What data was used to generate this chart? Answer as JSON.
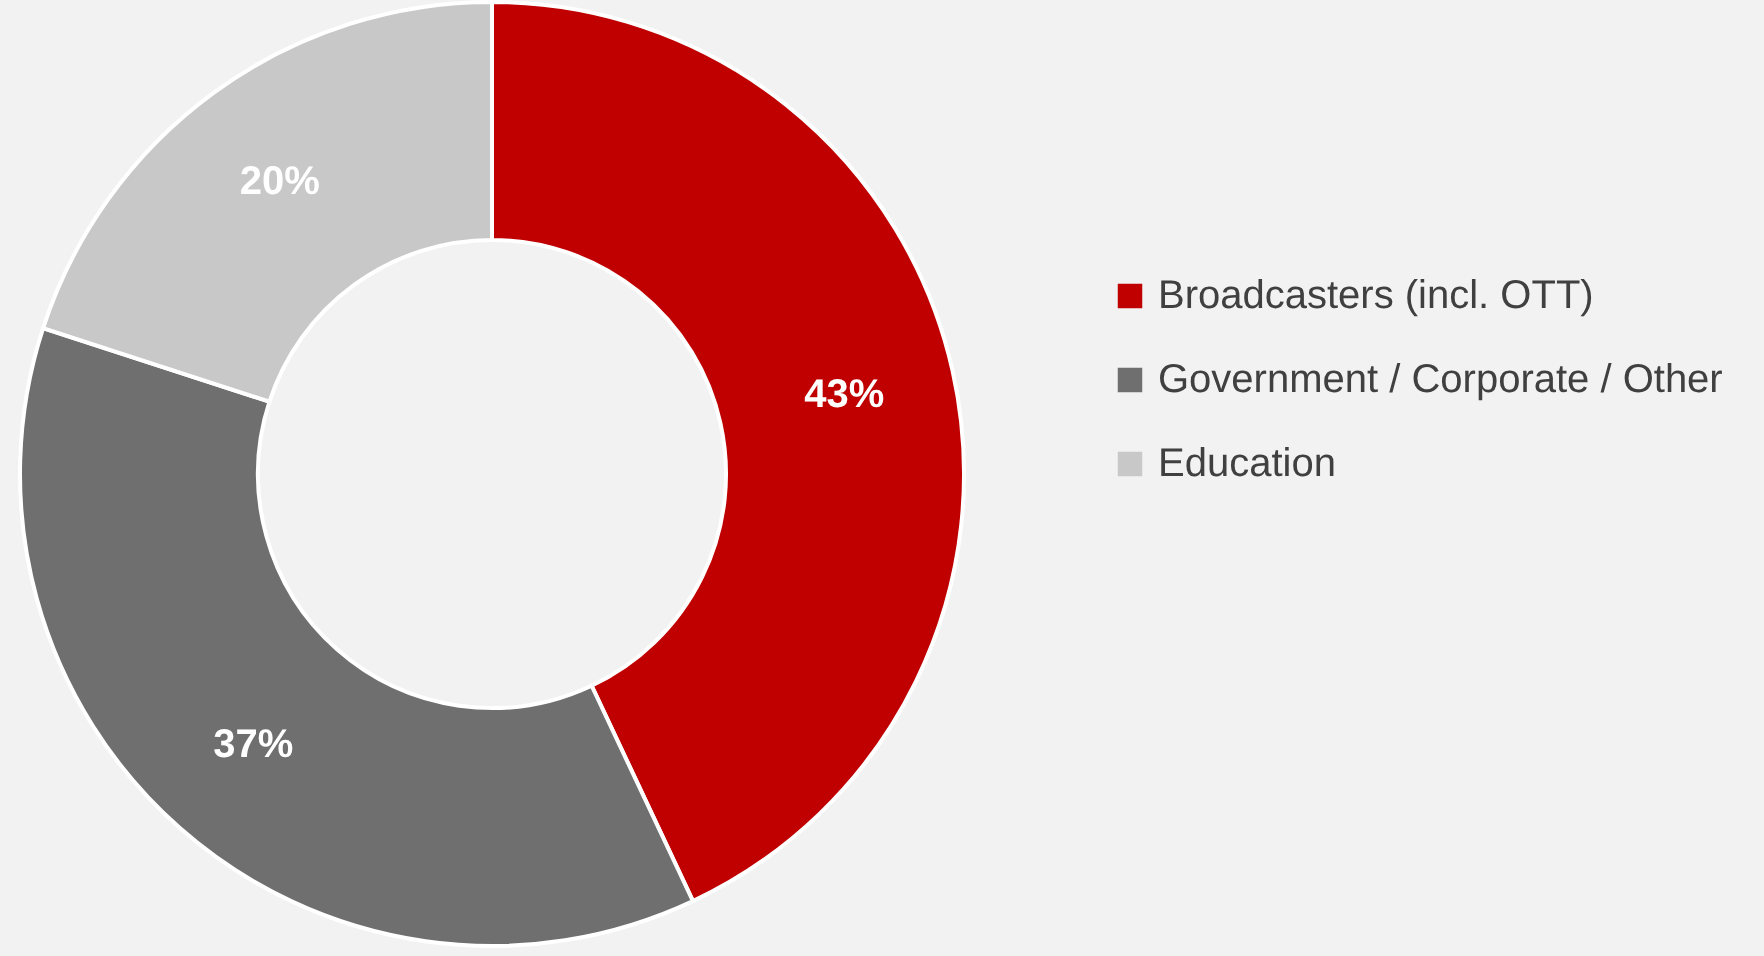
{
  "chart_data": {
    "type": "donut",
    "categories": [
      "Broadcasters (incl. OTT)",
      "Government / Corporate / Other",
      "Education"
    ],
    "values": [
      43,
      37,
      20
    ],
    "colors": [
      "#c00000",
      "#6f6f6f",
      "#c8c8c8"
    ],
    "value_labels": [
      "43%",
      "37%",
      "20%"
    ],
    "legend": "right"
  }
}
